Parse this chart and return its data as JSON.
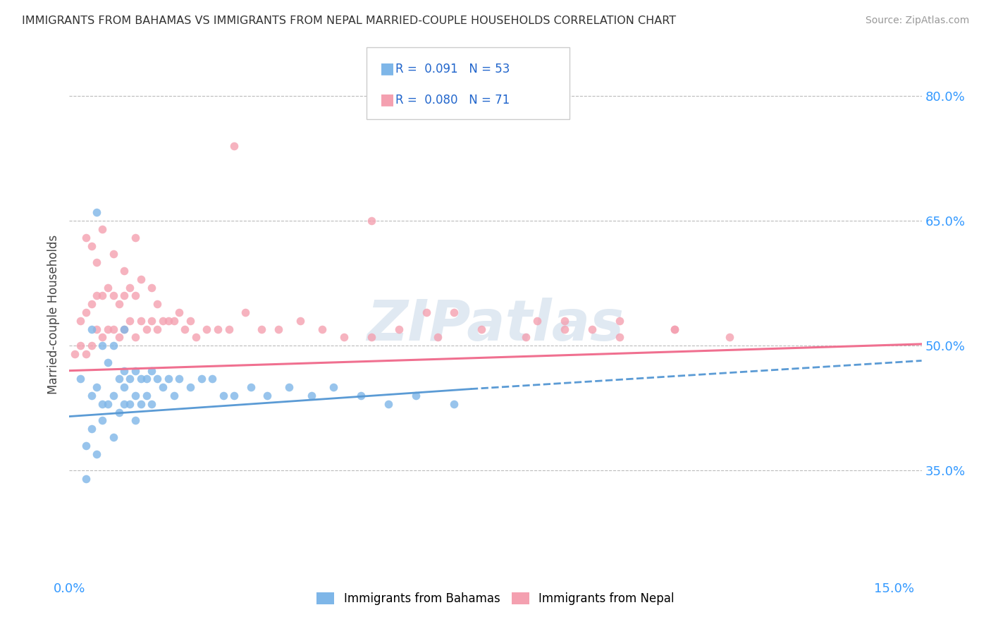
{
  "title": "IMMIGRANTS FROM BAHAMAS VS IMMIGRANTS FROM NEPAL MARRIED-COUPLE HOUSEHOLDS CORRELATION CHART",
  "source": "Source: ZipAtlas.com",
  "ylabel": "Married-couple Households",
  "ytick_values": [
    0.35,
    0.5,
    0.65,
    0.8
  ],
  "xlim": [
    0.0,
    0.155
  ],
  "ylim": [
    0.22,
    0.855
  ],
  "color_bahamas": "#7EB6E8",
  "color_nepal": "#F4A0B0",
  "trendline_bahamas_color": "#5B9BD5",
  "trendline_nepal_color": "#F07090",
  "background_color": "#FFFFFF",
  "grid_color": "#BBBBBB",
  "watermark_color": "#C8D8E8",
  "bahamas_x": [
    0.002,
    0.003,
    0.004,
    0.004,
    0.005,
    0.005,
    0.006,
    0.006,
    0.007,
    0.007,
    0.008,
    0.008,
    0.009,
    0.009,
    0.01,
    0.01,
    0.01,
    0.011,
    0.011,
    0.012,
    0.012,
    0.013,
    0.013,
    0.014,
    0.014,
    0.015,
    0.015,
    0.016,
    0.017,
    0.018,
    0.019,
    0.02,
    0.022,
    0.024,
    0.026,
    0.028,
    0.03,
    0.033,
    0.036,
    0.04,
    0.044,
    0.048,
    0.053,
    0.058,
    0.063,
    0.07,
    0.003,
    0.004,
    0.005,
    0.006,
    0.008,
    0.01,
    0.012
  ],
  "bahamas_y": [
    0.46,
    0.34,
    0.44,
    0.52,
    0.66,
    0.45,
    0.5,
    0.43,
    0.48,
    0.43,
    0.5,
    0.44,
    0.46,
    0.42,
    0.47,
    0.45,
    0.52,
    0.46,
    0.43,
    0.47,
    0.44,
    0.46,
    0.43,
    0.46,
    0.44,
    0.47,
    0.43,
    0.46,
    0.45,
    0.46,
    0.44,
    0.46,
    0.45,
    0.46,
    0.46,
    0.44,
    0.44,
    0.45,
    0.44,
    0.45,
    0.44,
    0.45,
    0.44,
    0.43,
    0.44,
    0.43,
    0.38,
    0.4,
    0.37,
    0.41,
    0.39,
    0.43,
    0.41
  ],
  "nepal_x": [
    0.001,
    0.002,
    0.002,
    0.003,
    0.003,
    0.004,
    0.004,
    0.005,
    0.005,
    0.006,
    0.006,
    0.007,
    0.007,
    0.008,
    0.008,
    0.009,
    0.009,
    0.01,
    0.01,
    0.011,
    0.011,
    0.012,
    0.012,
    0.013,
    0.013,
    0.014,
    0.015,
    0.015,
    0.016,
    0.016,
    0.017,
    0.018,
    0.019,
    0.02,
    0.021,
    0.022,
    0.023,
    0.025,
    0.027,
    0.029,
    0.032,
    0.035,
    0.038,
    0.042,
    0.046,
    0.05,
    0.055,
    0.06,
    0.067,
    0.075,
    0.083,
    0.09,
    0.1,
    0.11,
    0.003,
    0.004,
    0.005,
    0.006,
    0.008,
    0.01,
    0.012,
    0.03,
    0.055,
    0.065,
    0.07,
    0.085,
    0.09,
    0.095,
    0.1,
    0.11,
    0.12
  ],
  "nepal_y": [
    0.49,
    0.5,
    0.53,
    0.49,
    0.54,
    0.5,
    0.55,
    0.52,
    0.56,
    0.51,
    0.56,
    0.52,
    0.57,
    0.52,
    0.56,
    0.51,
    0.55,
    0.52,
    0.56,
    0.53,
    0.57,
    0.51,
    0.56,
    0.53,
    0.58,
    0.52,
    0.53,
    0.57,
    0.52,
    0.55,
    0.53,
    0.53,
    0.53,
    0.54,
    0.52,
    0.53,
    0.51,
    0.52,
    0.52,
    0.52,
    0.54,
    0.52,
    0.52,
    0.53,
    0.52,
    0.51,
    0.51,
    0.52,
    0.51,
    0.52,
    0.51,
    0.52,
    0.51,
    0.52,
    0.63,
    0.62,
    0.6,
    0.64,
    0.61,
    0.59,
    0.63,
    0.74,
    0.65,
    0.54,
    0.54,
    0.53,
    0.53,
    0.52,
    0.53,
    0.52,
    0.51
  ],
  "trendline_nepal_x0": 0.0,
  "trendline_nepal_y0": 0.47,
  "trendline_nepal_x1": 0.155,
  "trendline_nepal_y1": 0.502,
  "trendline_bahamas_solid_x0": 0.0,
  "trendline_bahamas_solid_y0": 0.415,
  "trendline_bahamas_solid_x1": 0.073,
  "trendline_bahamas_solid_y1": 0.448,
  "trendline_bahamas_dash_x0": 0.073,
  "trendline_bahamas_dash_y0": 0.448,
  "trendline_bahamas_dash_x1": 0.155,
  "trendline_bahamas_dash_y1": 0.482
}
